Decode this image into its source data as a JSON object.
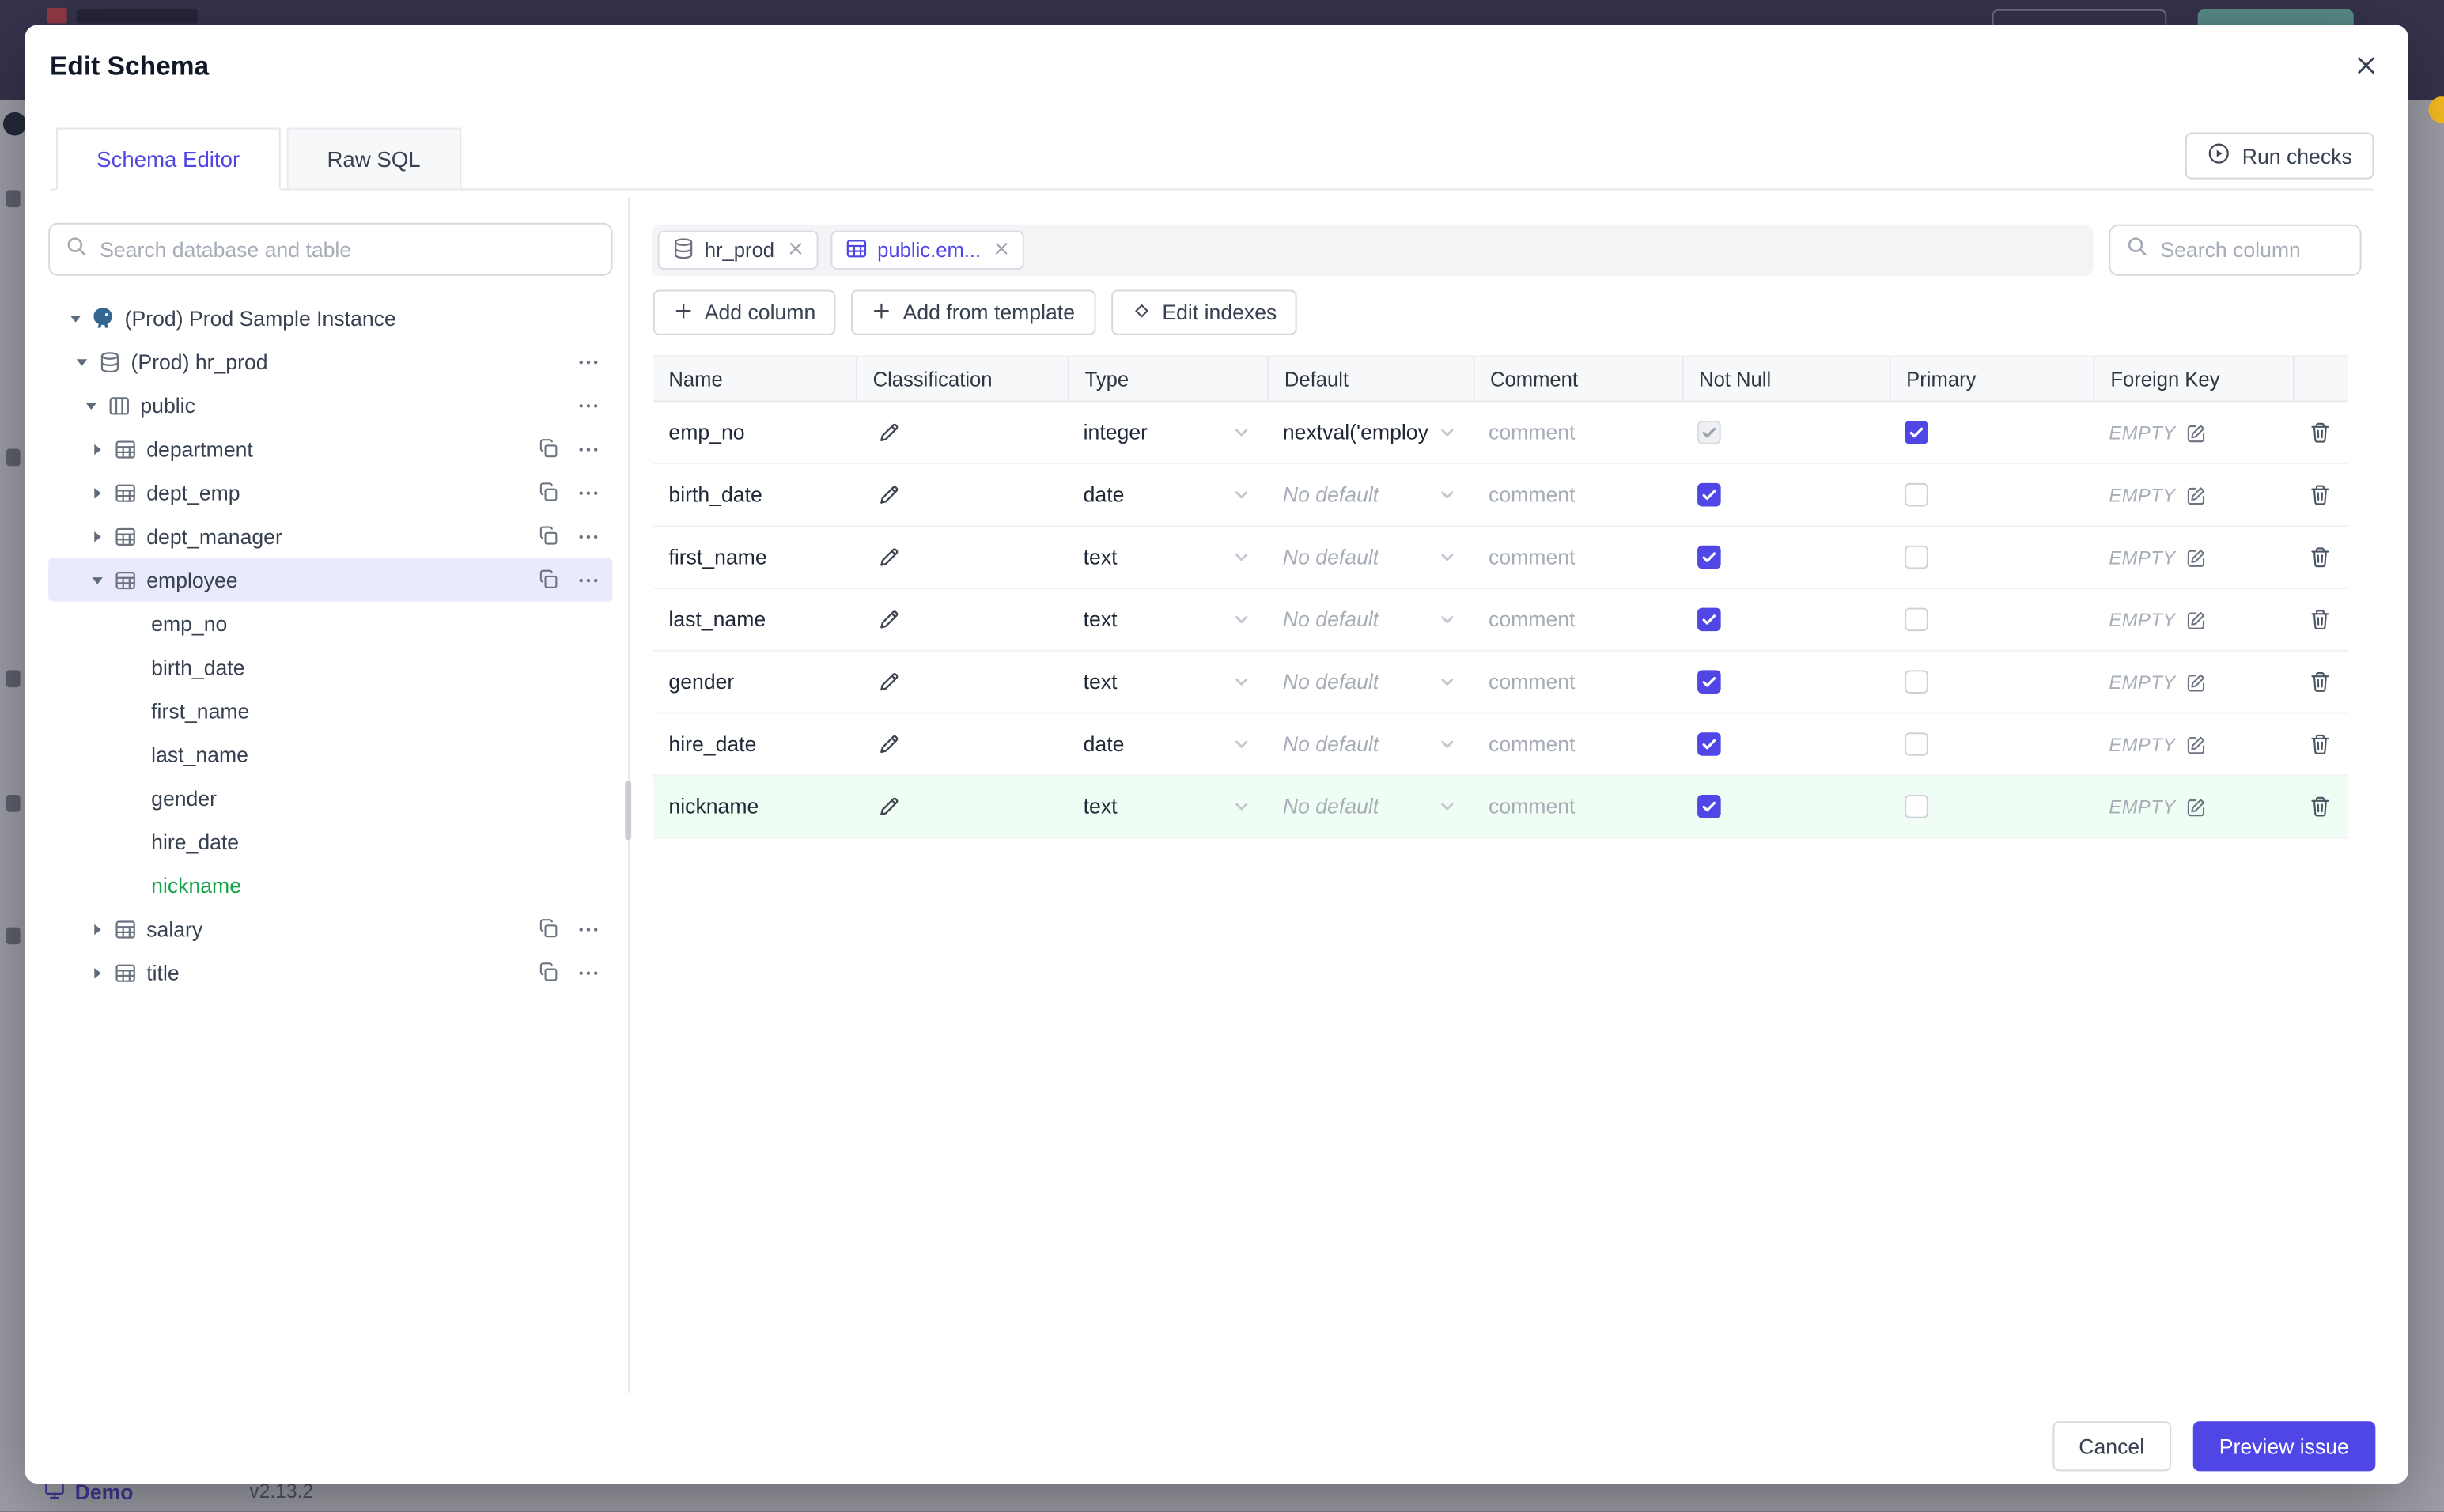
{
  "colors": {
    "accent": "#4f46e5",
    "added_green": "#16a34a",
    "selected_bg": "#e9ebfc"
  },
  "background": {
    "demo_label": "Demo",
    "version": "v2.13.2"
  },
  "modal": {
    "title": "Edit Schema",
    "tabs": [
      {
        "label": "Schema Editor",
        "active": true
      },
      {
        "label": "Raw SQL",
        "active": false
      }
    ],
    "run_checks_label": "Run checks",
    "sidebar": {
      "search_placeholder": "Search database and table",
      "tree": [
        {
          "label": "(Prod) Prod Sample Instance",
          "kind": "instance",
          "level": 0,
          "expanded": true
        },
        {
          "label": "(Prod) hr_prod",
          "kind": "database",
          "level": 1,
          "expanded": true,
          "menu": true
        },
        {
          "label": "public",
          "kind": "schema",
          "level": 2,
          "expanded": true,
          "menu": true
        },
        {
          "label": "department",
          "kind": "table",
          "level": 3,
          "expanded": false,
          "copy": true,
          "menu": true
        },
        {
          "label": "dept_emp",
          "kind": "table",
          "level": 3,
          "expanded": false,
          "copy": true,
          "menu": true
        },
        {
          "label": "dept_manager",
          "kind": "table",
          "level": 3,
          "expanded": false,
          "copy": true,
          "menu": true
        },
        {
          "label": "employee",
          "kind": "table",
          "level": 3,
          "expanded": true,
          "copy": true,
          "menu": true,
          "selected": true
        },
        {
          "label": "emp_no",
          "kind": "column",
          "level": 4
        },
        {
          "label": "birth_date",
          "kind": "column",
          "level": 4
        },
        {
          "label": "first_name",
          "kind": "column",
          "level": 4
        },
        {
          "label": "last_name",
          "kind": "column",
          "level": 4
        },
        {
          "label": "gender",
          "kind": "column",
          "level": 4
        },
        {
          "label": "hire_date",
          "kind": "column",
          "level": 4
        },
        {
          "label": "nickname",
          "kind": "column",
          "level": 4,
          "added": true
        },
        {
          "label": "salary",
          "kind": "table",
          "level": 3,
          "expanded": false,
          "copy": true,
          "menu": true
        },
        {
          "label": "title",
          "kind": "table",
          "level": 3,
          "expanded": false,
          "copy": true,
          "menu": true
        }
      ]
    },
    "main": {
      "chips": [
        {
          "label": "hr_prod",
          "kind": "database",
          "active": false
        },
        {
          "label": "public.em...",
          "kind": "table",
          "active": true
        }
      ],
      "column_search_placeholder": "Search column",
      "toolbar": {
        "add_column": "Add column",
        "add_from_template": "Add from template",
        "edit_indexes": "Edit indexes"
      },
      "table": {
        "headers": [
          "Name",
          "Classification",
          "Type",
          "Default",
          "Comment",
          "Not Null",
          "Primary",
          "Foreign Key"
        ],
        "comment_placeholder": "comment",
        "rows": [
          {
            "name": "emp_no",
            "type": "integer",
            "default": "nextval('employ",
            "default_placeholder": false,
            "not_null": true,
            "not_null_disabled": true,
            "primary": true,
            "foreign_key": "EMPTY",
            "added": false
          },
          {
            "name": "birth_date",
            "type": "date",
            "default": "No default",
            "default_placeholder": true,
            "not_null": true,
            "not_null_disabled": false,
            "primary": false,
            "foreign_key": "EMPTY",
            "added": false
          },
          {
            "name": "first_name",
            "type": "text",
            "default": "No default",
            "default_placeholder": true,
            "not_null": true,
            "not_null_disabled": false,
            "primary": false,
            "foreign_key": "EMPTY",
            "added": false
          },
          {
            "name": "last_name",
            "type": "text",
            "default": "No default",
            "default_placeholder": true,
            "not_null": true,
            "not_null_disabled": false,
            "primary": false,
            "foreign_key": "EMPTY",
            "added": false
          },
          {
            "name": "gender",
            "type": "text",
            "default": "No default",
            "default_placeholder": true,
            "not_null": true,
            "not_null_disabled": false,
            "primary": false,
            "foreign_key": "EMPTY",
            "added": false
          },
          {
            "name": "hire_date",
            "type": "date",
            "default": "No default",
            "default_placeholder": true,
            "not_null": true,
            "not_null_disabled": false,
            "primary": false,
            "foreign_key": "EMPTY",
            "added": false
          },
          {
            "name": "nickname",
            "type": "text",
            "default": "No default",
            "default_placeholder": true,
            "not_null": true,
            "not_null_disabled": false,
            "primary": false,
            "foreign_key": "EMPTY",
            "added": true
          }
        ]
      }
    },
    "footer": {
      "cancel_label": "Cancel",
      "primary_label": "Preview issue"
    }
  }
}
